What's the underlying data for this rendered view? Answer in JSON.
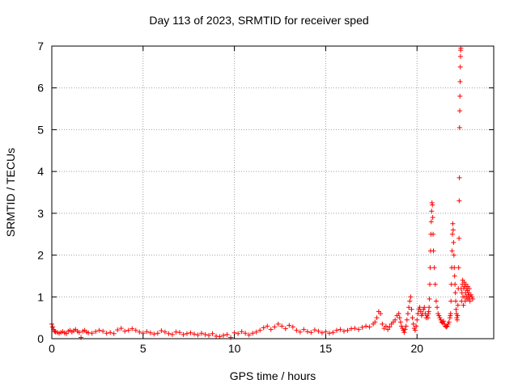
{
  "chart_data": {
    "type": "scatter",
    "title": "Day 113 of 2023, SRMTID for receiver sped",
    "xlabel": "GPS time / hours",
    "ylabel": "SRMTID / TECUs",
    "xlim": [
      0,
      24.2
    ],
    "ylim": [
      0,
      7
    ],
    "xticks": [
      0,
      5,
      10,
      15,
      20
    ],
    "yticks": [
      0,
      1,
      2,
      3,
      4,
      5,
      6,
      7
    ],
    "grid": true,
    "marker": "+",
    "color": "#ff0000",
    "series": [
      {
        "name": "SRMTID",
        "x": [
          0.0,
          0.05,
          0.1,
          0.15,
          0.2,
          0.3,
          0.4,
          0.5,
          0.6,
          0.7,
          0.8,
          0.9,
          1.0,
          1.1,
          1.2,
          1.3,
          1.4,
          1.5,
          1.6,
          1.7,
          1.8,
          1.9,
          2.0,
          2.2,
          2.4,
          2.6,
          2.8,
          3.0,
          3.2,
          3.4,
          3.6,
          3.8,
          4.0,
          4.2,
          4.4,
          4.6,
          4.8,
          5.0,
          5.2,
          5.4,
          5.6,
          5.8,
          6.0,
          6.2,
          6.4,
          6.6,
          6.8,
          7.0,
          7.2,
          7.4,
          7.6,
          7.8,
          8.0,
          8.2,
          8.4,
          8.6,
          8.8,
          9.0,
          9.2,
          9.4,
          9.6,
          9.8,
          10.0,
          10.2,
          10.4,
          10.6,
          10.8,
          11.0,
          11.2,
          11.4,
          11.6,
          11.8,
          12.0,
          12.2,
          12.4,
          12.6,
          12.8,
          13.0,
          13.2,
          13.4,
          13.6,
          13.8,
          14.0,
          14.2,
          14.4,
          14.6,
          14.8,
          15.0,
          15.2,
          15.4,
          15.6,
          15.8,
          16.0,
          16.2,
          16.4,
          16.6,
          16.8,
          17.0,
          17.2,
          17.4,
          17.6,
          17.7,
          17.8,
          17.9,
          18.0,
          18.1,
          18.2,
          18.3,
          18.4,
          18.5,
          18.6,
          18.7,
          18.8,
          18.9,
          19.0,
          19.05,
          19.1,
          19.15,
          19.2,
          19.25,
          19.3,
          19.35,
          19.4,
          19.45,
          19.5,
          19.55,
          19.6,
          19.65,
          19.7,
          19.75,
          19.8,
          19.85,
          19.9,
          19.95,
          20.0,
          20.05,
          20.1,
          20.15,
          20.2,
          20.25,
          20.3,
          20.35,
          20.4,
          20.45,
          20.5,
          20.55,
          20.6,
          20.62,
          20.64,
          20.66,
          20.68,
          20.7,
          20.72,
          20.74,
          20.76,
          20.78,
          20.8,
          20.82,
          20.84,
          20.86,
          20.88,
          20.9,
          20.95,
          21.0,
          21.05,
          21.1,
          21.15,
          21.2,
          21.25,
          21.3,
          21.35,
          21.4,
          21.45,
          21.5,
          21.55,
          21.6,
          21.65,
          21.7,
          21.75,
          21.8,
          21.82,
          21.84,
          21.86,
          21.88,
          21.9,
          21.92,
          21.94,
          21.96,
          21.98,
          22.0,
          22.02,
          22.04,
          22.06,
          22.08,
          22.1,
          22.12,
          22.14,
          22.16,
          22.18,
          22.2,
          22.22,
          22.24,
          22.26,
          22.28,
          22.3,
          22.31,
          22.32,
          22.33,
          22.34,
          22.35,
          22.36,
          22.37,
          22.38,
          22.39,
          22.4,
          22.42,
          22.44,
          22.46,
          22.48,
          22.5,
          22.52,
          22.54,
          22.56,
          22.58,
          22.6,
          22.62,
          22.64,
          22.66,
          22.68,
          22.7,
          22.72,
          22.74,
          22.76,
          22.78,
          22.8,
          22.82,
          22.84,
          22.86,
          22.88,
          22.9,
          22.95,
          23.0,
          23.05
        ],
        "y": [
          0.35,
          0.28,
          0.22,
          0.18,
          0.16,
          0.15,
          0.13,
          0.15,
          0.17,
          0.14,
          0.12,
          0.18,
          0.2,
          0.16,
          0.19,
          0.22,
          0.18,
          0.15,
          0.03,
          0.18,
          0.2,
          0.16,
          0.14,
          0.13,
          0.17,
          0.2,
          0.18,
          0.13,
          0.15,
          0.12,
          0.21,
          0.25,
          0.18,
          0.2,
          0.24,
          0.2,
          0.16,
          0.13,
          0.17,
          0.14,
          0.11,
          0.13,
          0.19,
          0.16,
          0.12,
          0.1,
          0.16,
          0.15,
          0.1,
          0.12,
          0.14,
          0.11,
          0.09,
          0.13,
          0.1,
          0.08,
          0.12,
          0.06,
          0.05,
          0.08,
          0.1,
          0.03,
          0.14,
          0.12,
          0.17,
          0.13,
          0.09,
          0.13,
          0.16,
          0.2,
          0.26,
          0.3,
          0.22,
          0.28,
          0.35,
          0.3,
          0.24,
          0.32,
          0.28,
          0.2,
          0.16,
          0.22,
          0.17,
          0.15,
          0.21,
          0.18,
          0.14,
          0.17,
          0.13,
          0.15,
          0.2,
          0.22,
          0.18,
          0.2,
          0.24,
          0.25,
          0.22,
          0.27,
          0.3,
          0.28,
          0.35,
          0.4,
          0.5,
          0.65,
          0.6,
          0.35,
          0.25,
          0.3,
          0.22,
          0.28,
          0.35,
          0.4,
          0.45,
          0.55,
          0.6,
          0.5,
          0.4,
          0.3,
          0.25,
          0.2,
          0.15,
          0.22,
          0.3,
          0.45,
          0.6,
          0.75,
          0.9,
          1.0,
          0.7,
          0.5,
          0.35,
          0.25,
          0.2,
          0.3,
          0.45,
          0.6,
          0.7,
          0.75,
          0.65,
          0.55,
          0.6,
          0.7,
          0.75,
          0.6,
          0.5,
          0.55,
          0.5,
          0.6,
          0.65,
          0.75,
          0.95,
          1.3,
          1.7,
          2.1,
          2.5,
          2.8,
          3.05,
          3.25,
          3.2,
          2.9,
          2.5,
          2.1,
          1.7,
          1.3,
          0.9,
          0.75,
          0.6,
          0.55,
          0.5,
          0.45,
          0.4,
          0.38,
          0.42,
          0.35,
          0.3,
          0.28,
          0.3,
          0.35,
          0.4,
          0.5,
          0.55,
          0.6,
          0.9,
          1.3,
          1.7,
          2.1,
          2.5,
          2.75,
          2.6,
          2.3,
          2.0,
          1.7,
          1.5,
          1.3,
          1.1,
          0.9,
          0.7,
          0.6,
          0.5,
          0.45,
          0.55,
          0.8,
          1.2,
          1.7,
          2.4,
          3.3,
          3.85,
          5.05,
          5.45,
          5.8,
          6.15,
          6.5,
          6.75,
          6.9,
          6.95,
          1.2,
          0.9,
          1.1,
          1.3,
          1.4,
          1.0,
          0.8,
          1.2,
          1.35,
          1.25,
          1.0,
          0.9,
          1.1,
          1.3,
          1.2,
          1.0,
          0.95,
          1.15,
          1.25,
          1.05,
          0.95,
          1.1,
          1.2,
          1.0,
          0.9,
          1.05,
          1.0,
          0.95
        ]
      }
    ]
  }
}
